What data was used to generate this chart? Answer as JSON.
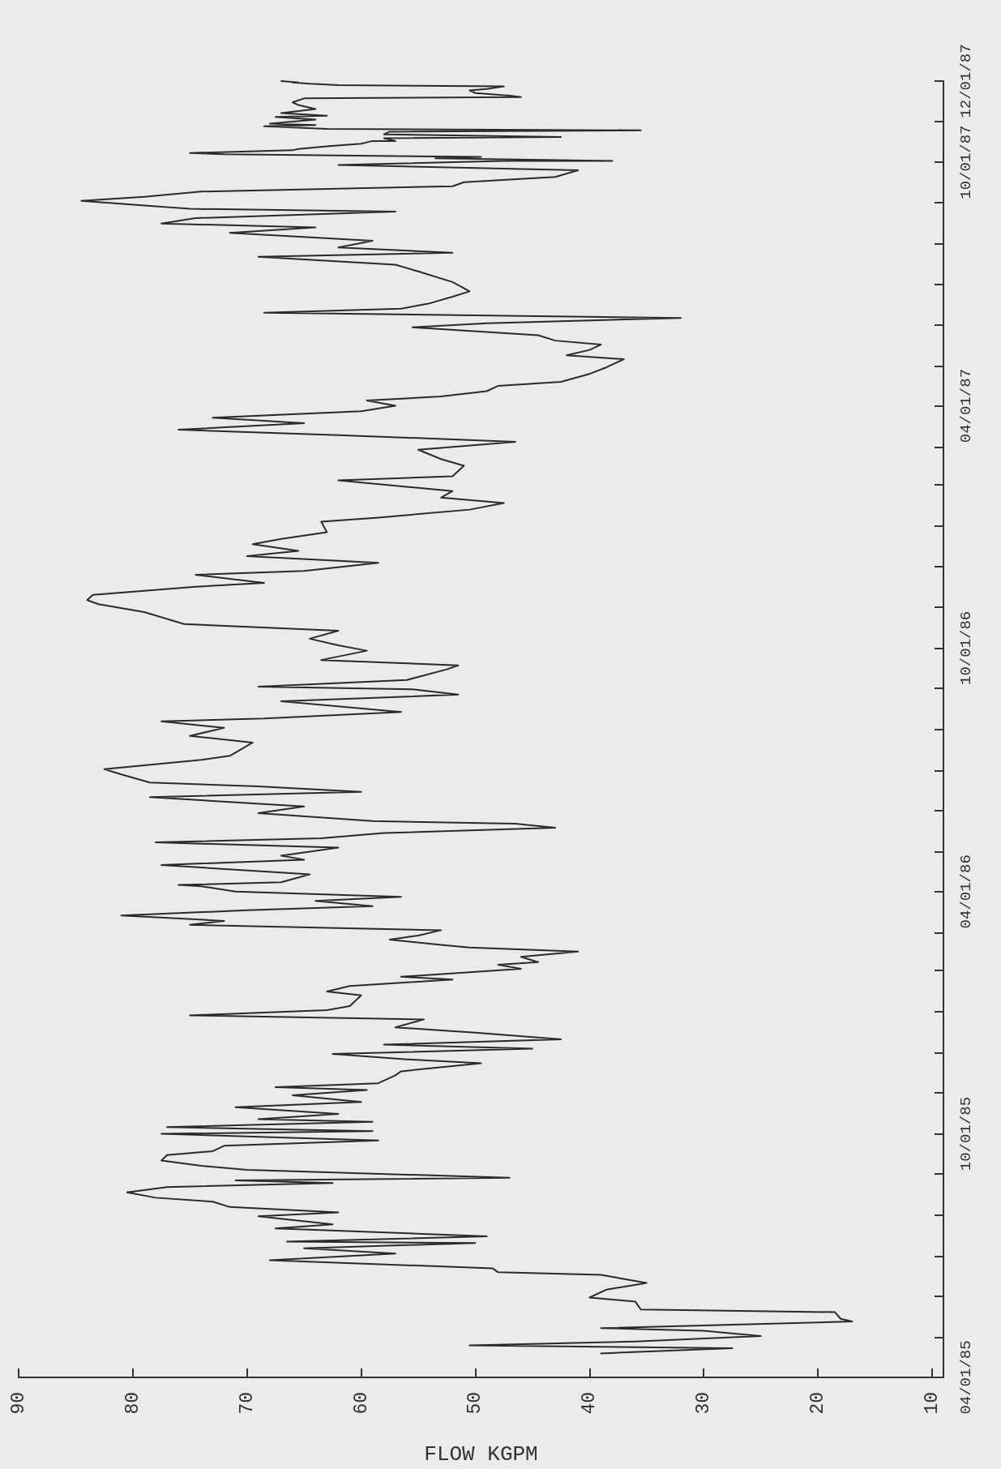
{
  "chart_data": {
    "type": "line",
    "orientation": "horizontal",
    "xlabel": "FLOW KGPM",
    "x": [
      "1985-04-19",
      "1985-04-23",
      "1985-04-25",
      "1985-04-28",
      "1985-05-02",
      "1985-05-06",
      "1985-05-08",
      "1985-05-13",
      "1985-05-15",
      "1985-05-20",
      "1985-05-22",
      "1985-05-28",
      "1985-05-31",
      "1985-06-06",
      "1985-06-11",
      "1985-06-17",
      "1985-06-19",
      "1985-06-22",
      "1985-06-28",
      "1985-07-03",
      "1985-07-07",
      "1985-07-11",
      "1985-07-12",
      "1985-07-16",
      "1985-07-22",
      "1985-07-25",
      "1985-07-31",
      "1985-08-03",
      "1985-08-07",
      "1985-08-11",
      "1985-08-14",
      "1985-08-18",
      "1985-08-22",
      "1985-08-25",
      "1985-08-27",
      "1985-08-29",
      "1985-09-04",
      "1985-09-07",
      "1985-09-11",
      "1985-09-15",
      "1985-09-18",
      "1985-09-22",
      "1985-09-26",
      "1985-10-01",
      "1985-10-03",
      "1985-10-06",
      "1985-10-10",
      "1985-10-12",
      "1985-10-16",
      "1985-10-21",
      "1985-10-25",
      "1985-10-30",
      "1985-11-03",
      "1985-11-05",
      "1985-11-08",
      "1985-11-14",
      "1985-11-17",
      "1985-11-23",
      "1985-11-26",
      "1985-11-30",
      "1985-12-04",
      "1985-12-07",
      "1985-12-11",
      "1985-12-16",
      "1985-12-20",
      "1985-12-26",
      "1985-12-29",
      "1986-01-02",
      "1986-01-05",
      "1986-01-13",
      "1986-01-16",
      "1986-01-20",
      "1986-01-25",
      "1986-01-27",
      "1986-02-02",
      "1986-02-05",
      "1986-02-07",
      "1986-02-11",
      "1986-02-15",
      "1986-02-18",
      "1986-02-20",
      "1986-02-24",
      "1986-02-27",
      "1986-03-03",
      "1986-03-07",
      "1986-03-10",
      "1986-03-14",
      "1986-03-18",
      "1986-03-21",
      "1986-03-25",
      "1986-03-28",
      "1986-04-01",
      "1986-04-05",
      "1986-04-06",
      "1986-04-08",
      "1986-04-14",
      "1986-04-21",
      "1986-04-25",
      "1986-04-28",
      "1986-05-04",
      "1986-05-08",
      "1986-05-11",
      "1986-05-15",
      "1986-05-19",
      "1986-05-22",
      "1986-05-24",
      "1986-05-30",
      "1986-06-04",
      "1986-06-11",
      "1986-06-15",
      "1986-06-19",
      "1986-06-22",
      "1986-06-28",
      "1986-07-02",
      "1986-07-09",
      "1986-07-12",
      "1986-07-22",
      "1986-07-27",
      "1986-08-02",
      "1986-08-07",
      "1986-08-09",
      "1986-08-14",
      "1986-08-22",
      "1986-08-27",
      "1986-08-31",
      "1986-09-02",
      "1986-09-07",
      "1986-09-15",
      "1986-09-18",
      "1986-09-22",
      "1986-09-29",
      "1986-10-03",
      "1986-10-08",
      "1986-10-14",
      "1986-10-19",
      "1986-10-28",
      "1986-11-03",
      "1986-11-06",
      "1986-11-10",
      "1986-11-16",
      "1986-11-19",
      "1986-11-25",
      "1986-11-28",
      "1986-12-04",
      "1986-12-09",
      "1986-12-13",
      "1986-12-18",
      "1986-12-22",
      "1986-12-27",
      "1987-01-04",
      "1987-01-07",
      "1987-01-13",
      "1987-01-18",
      "1987-01-22",
      "1987-01-27",
      "1987-02-04",
      "1987-02-07",
      "1987-02-15",
      "1987-02-20",
      "1987-02-27",
      "1987-03-05",
      "1987-03-10",
      "1987-03-14",
      "1987-03-19",
      "1987-03-23",
      "1987-03-28",
      "1987-04-01",
      "1987-04-05",
      "1987-04-08",
      "1987-04-12",
      "1987-04-16",
      "1987-04-19",
      "1987-04-25",
      "1987-04-30",
      "1987-05-06",
      "1987-05-09",
      "1987-05-13",
      "1987-05-17",
      "1987-05-20",
      "1987-05-24",
      "1987-05-30",
      "1987-06-02",
      "1987-06-06",
      "1987-06-10",
      "1987-06-13",
      "1987-06-17",
      "1987-06-22",
      "1987-06-26",
      "1987-07-03",
      "1987-07-11",
      "1987-07-16",
      "1987-07-22",
      "1987-07-25",
      "1987-07-29",
      "1987-08-03",
      "1987-08-09",
      "1987-08-13",
      "1987-08-16",
      "1987-08-20",
      "1987-08-25",
      "1987-08-27",
      "1987-09-02",
      "1987-09-05",
      "1987-09-09",
      "1987-09-13",
      "1987-09-16",
      "1987-09-20",
      "1987-09-25",
      "1987-09-29",
      "1987-10-02",
      "1987-10-02",
      "1987-10-04",
      "1987-10-05",
      "1987-10-07",
      "1987-10-08",
      "1987-10-10",
      "1987-10-11",
      "1987-10-13",
      "1987-10-15",
      "1987-10-17",
      "1987-10-17",
      "1987-10-19",
      "1987-10-20",
      "1987-10-22",
      "1987-10-24",
      "1987-10-25",
      "1987-10-26",
      "1987-10-28",
      "1987-10-29",
      "1987-10-30",
      "1987-11-02",
      "1987-11-04",
      "1987-11-05",
      "1987-11-07",
      "1987-11-10",
      "1987-11-13",
      "1987-11-15",
      "1987-11-18",
      "1987-11-19",
      "1987-11-20",
      "1987-11-22",
      "1987-11-24",
      "1987-11-25",
      "1987-11-27",
      "1987-11-28",
      "1987-11-29",
      "1987-11-30",
      "1987-11-30",
      "1987-12-01"
    ],
    "series": [
      {
        "color": "#2a2a2a",
        "values": [
          39,
          27.5,
          50.5,
          36,
          25,
          30,
          39,
          17,
          18,
          18.5,
          35.5,
          36,
          40,
          38.5,
          35,
          39,
          48,
          48.5,
          68,
          57,
          65,
          50,
          66.5,
          49,
          67.5,
          62.5,
          69,
          62,
          71.5,
          73,
          78,
          80.5,
          77,
          62.5,
          71,
          47,
          70,
          74,
          77.5,
          77,
          73,
          72,
          58.5,
          77.5,
          59,
          77,
          59,
          69,
          62,
          71,
          60,
          66,
          59.5,
          67.5,
          58.5,
          57,
          56.5,
          49.5,
          56,
          62.5,
          45,
          58,
          42.5,
          50,
          57,
          54.5,
          75,
          63,
          61,
          60,
          63,
          61,
          52,
          56.5,
          46,
          48,
          44.5,
          46,
          41,
          50.5,
          53,
          57.5,
          55,
          53,
          75,
          72,
          81,
          70,
          59,
          64,
          56.5,
          71,
          74,
          76,
          67,
          64.5,
          77.5,
          65,
          67,
          62,
          78,
          63.5,
          58,
          43,
          46.5,
          59,
          69,
          65,
          78.5,
          60,
          69,
          78.5,
          81,
          82.5,
          74,
          71.5,
          69.5,
          75,
          72,
          77.5,
          68.5,
          56.5,
          67,
          51.5,
          55.5,
          69,
          56,
          52.5,
          51.5,
          63.5,
          59.5,
          62,
          64.5,
          62,
          75.5,
          79,
          83,
          84,
          83.5,
          74.5,
          68.5,
          74.5,
          65,
          58.5,
          70,
          65.5,
          69.5,
          67,
          63,
          63.5,
          58.5,
          50.5,
          47.5,
          53,
          52,
          62,
          52,
          51,
          53,
          55,
          46.5,
          62,
          76,
          65,
          73,
          60,
          57,
          59.5,
          53,
          49,
          48,
          42.5,
          40,
          38.5,
          37,
          42,
          40,
          39,
          43,
          44.5,
          55.5,
          49,
          32,
          68.5,
          56.5,
          54,
          52,
          50.5,
          52,
          55,
          57,
          69,
          52,
          62,
          59,
          71.5,
          64,
          77.5,
          74.5,
          57,
          75,
          84.5,
          79,
          74,
          52,
          51,
          43,
          41,
          62,
          47.5,
          38,
          53.5,
          49.5,
          72,
          75,
          66,
          65.5,
          63,
          60,
          59,
          57,
          58,
          42.5,
          58,
          57.5,
          35.5,
          63,
          68.5,
          64,
          68,
          64,
          67.5,
          63,
          67,
          64,
          65.5,
          66,
          65,
          46,
          47,
          50,
          50.5,
          49,
          47.5,
          62,
          64.5,
          66,
          65.5,
          67
        ]
      }
    ],
    "xlim": [
      90,
      9
    ],
    "xticks": [
      10,
      20,
      30,
      40,
      50,
      60,
      70,
      80,
      90
    ],
    "ylim": [
      "1985-04-01",
      "1987-12-01"
    ],
    "yticks": [
      {
        "value": "1985-04-01",
        "label": "04/01/85"
      },
      {
        "value": "1985-05-01",
        "label": null
      },
      {
        "value": "1985-06-01",
        "label": null
      },
      {
        "value": "1985-07-01",
        "label": null
      },
      {
        "value": "1985-08-01",
        "label": null
      },
      {
        "value": "1985-09-01",
        "label": null
      },
      {
        "value": "1985-10-01",
        "label": "10/01/85"
      },
      {
        "value": "1985-11-01",
        "label": null
      },
      {
        "value": "1985-12-01",
        "label": null
      },
      {
        "value": "1986-01-01",
        "label": null
      },
      {
        "value": "1986-02-01",
        "label": null
      },
      {
        "value": "1986-03-01",
        "label": null
      },
      {
        "value": "1986-04-01",
        "label": "04/01/86"
      },
      {
        "value": "1986-05-01",
        "label": null
      },
      {
        "value": "1986-06-01",
        "label": null
      },
      {
        "value": "1986-07-01",
        "label": null
      },
      {
        "value": "1986-08-01",
        "label": null
      },
      {
        "value": "1986-09-01",
        "label": null
      },
      {
        "value": "1986-10-01",
        "label": "10/01/86"
      },
      {
        "value": "1986-11-01",
        "label": null
      },
      {
        "value": "1986-12-01",
        "label": null
      },
      {
        "value": "1987-01-01",
        "label": null
      },
      {
        "value": "1987-02-01",
        "label": null
      },
      {
        "value": "1987-03-01",
        "label": null
      },
      {
        "value": "1987-04-01",
        "label": "04/01/87"
      },
      {
        "value": "1987-05-01",
        "label": null
      },
      {
        "value": "1987-06-01",
        "label": null
      },
      {
        "value": "1987-07-01",
        "label": null
      },
      {
        "value": "1987-08-01",
        "label": null
      },
      {
        "value": "1987-09-01",
        "label": null
      },
      {
        "value": "1987-10-01",
        "label": "10/01/87"
      },
      {
        "value": "1987-11-01",
        "label": null
      },
      {
        "value": "1987-12-01",
        "label": "12/01/87"
      }
    ],
    "marker": "none",
    "line_style": "solid"
  }
}
